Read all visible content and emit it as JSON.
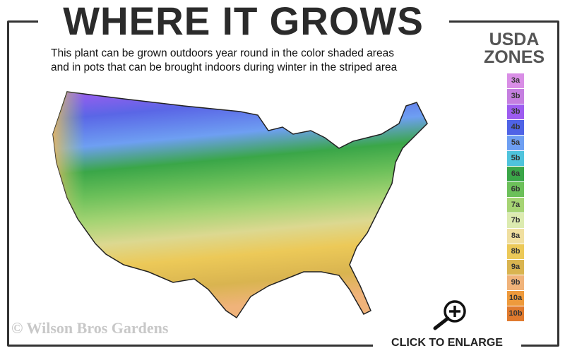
{
  "title": "WHERE IT GROWS",
  "subtitle_line1": "This plant can be grown outdoors year round in the color shaded areas",
  "subtitle_line2": "and in pots that can be brought indoors during winter in the striped area",
  "legend": {
    "heading1": "USDA",
    "heading2": "ZONES",
    "zones": [
      {
        "label": "3a",
        "color": "#d98ee6"
      },
      {
        "label": "3b",
        "color": "#c57fe0"
      },
      {
        "label": "3b",
        "color": "#9d5cf0"
      },
      {
        "label": "4b",
        "color": "#4f63e6"
      },
      {
        "label": "5a",
        "color": "#6e9ff2"
      },
      {
        "label": "5b",
        "color": "#4fc3dc"
      },
      {
        "label": "6a",
        "color": "#3aa648"
      },
      {
        "label": "6b",
        "color": "#6cc05a"
      },
      {
        "label": "7a",
        "color": "#a6d474"
      },
      {
        "label": "7b",
        "color": "#dcebb0"
      },
      {
        "label": "8a",
        "color": "#f0dfa0"
      },
      {
        "label": "8b",
        "color": "#ecc958"
      },
      {
        "label": "9a",
        "color": "#d9b450"
      },
      {
        "label": "9b",
        "color": "#f0b37a"
      },
      {
        "label": "10a",
        "color": "#ee9a3c"
      },
      {
        "label": "10b",
        "color": "#e07a2e"
      }
    ]
  },
  "copyright": "© Wilson Bros Gardens",
  "enlarge_label": "CLICK TO ENLARGE",
  "icons": {
    "enlarge": "magnifier-plus-icon"
  }
}
